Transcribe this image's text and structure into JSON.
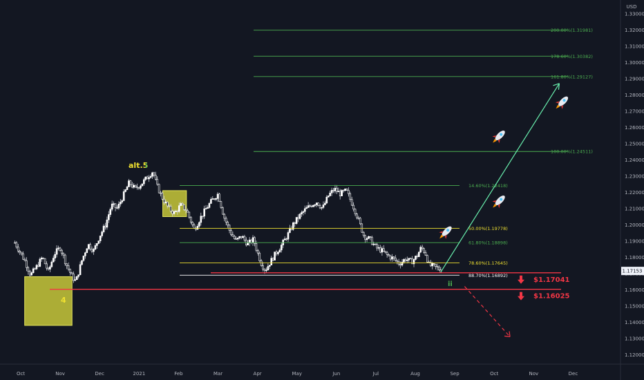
{
  "chart_data": {
    "type": "candlestick",
    "currency": "USD",
    "y_range": [
      1.115,
      1.335
    ],
    "y_ticks": [
      "1.33000",
      "1.32000",
      "1.31000",
      "1.30000",
      "1.29000",
      "1.28000",
      "1.27000",
      "1.26000",
      "1.25000",
      "1.24000",
      "1.23000",
      "1.22000",
      "1.21000",
      "1.20000",
      "1.19000",
      "1.18000",
      "1.17000",
      "1.16000",
      "1.15000",
      "1.14000",
      "1.13000",
      "1.12000"
    ],
    "x_labels": [
      "Oct",
      "Nov",
      "Dec",
      "2021",
      "Feb",
      "Mar",
      "Apr",
      "May",
      "Jun",
      "Jul",
      "Aug",
      "Sep",
      "Oct",
      "Nov",
      "Dec"
    ],
    "x_label_values": [
      0,
      2,
      4,
      6,
      8,
      10,
      12,
      14,
      16,
      18,
      20,
      22,
      24,
      26,
      28
    ],
    "current_price": "1.17153",
    "fib_retracement": [
      {
        "label": "14.60%(1.22418)",
        "price": 1.22418,
        "color": "#4caf50"
      },
      {
        "label": "50.00%(1.19778)",
        "price": 1.19778,
        "color": "#f0e130"
      },
      {
        "label": "61.80%(1.18898)",
        "price": 1.18898,
        "color": "#4caf50"
      },
      {
        "label": "78.60%(1.17645)",
        "price": 1.17645,
        "color": "#f0e130"
      },
      {
        "label": "88.70%(1.16892)",
        "price": 1.16892,
        "color": "#ffffff"
      }
    ],
    "fib_extension": [
      {
        "label": "200.00%(1.31981)",
        "price": 1.31981
      },
      {
        "label": "178.60%(1.30382)",
        "price": 1.30382
      },
      {
        "label": "161.80%(1.29127)",
        "price": 1.29127
      },
      {
        "label": "100.00%(1.24511)",
        "price": 1.24511
      }
    ],
    "support_levels": [
      {
        "label": "$1.17041",
        "price": 1.17041
      },
      {
        "label": "$1.16025",
        "price": 1.16025
      }
    ],
    "wave_labels": [
      {
        "text": "alt.5",
        "color": "#f0e130"
      },
      {
        "text": "i",
        "color": "#4caf50"
      },
      {
        "text": "4",
        "color": "#f0e130"
      },
      {
        "text": "ii",
        "color": "#4caf50"
      }
    ],
    "zones": [
      {
        "from": [
          0.2,
          1.168
        ],
        "to": [
          2.6,
          1.138
        ],
        "color": "#c8c83a"
      },
      {
        "from": [
          7.2,
          1.221
        ],
        "to": [
          8.4,
          1.205
        ],
        "color": "#c8c83a"
      }
    ],
    "projection_up": {
      "from": [
        21.3,
        1.171
      ],
      "to": [
        27.3,
        1.287
      ]
    },
    "projection_down": {
      "from": [
        22.5,
        1.162
      ],
      "to": [
        24.8,
        1.131
      ]
    },
    "rockets": [
      [
        21.6,
        1.196
      ],
      [
        24.3,
        1.215
      ],
      [
        24.3,
        1.255
      ],
      [
        27.5,
        1.276
      ]
    ],
    "price_path": [
      [
        -0.3,
        1.189
      ],
      [
        0.2,
        1.178
      ],
      [
        0.5,
        1.169
      ],
      [
        0.8,
        1.174
      ],
      [
        1.1,
        1.18
      ],
      [
        1.4,
        1.171
      ],
      [
        1.7,
        1.182
      ],
      [
        2.0,
        1.186
      ],
      [
        2.3,
        1.176
      ],
      [
        2.6,
        1.168
      ],
      [
        2.8,
        1.165
      ],
      [
        3.1,
        1.178
      ],
      [
        3.4,
        1.188
      ],
      [
        3.7,
        1.184
      ],
      [
        4.0,
        1.193
      ],
      [
        4.3,
        1.2
      ],
      [
        4.6,
        1.212
      ],
      [
        4.9,
        1.21
      ],
      [
        5.2,
        1.218
      ],
      [
        5.5,
        1.226
      ],
      [
        5.8,
        1.222
      ],
      [
        6.1,
        1.225
      ],
      [
        6.4,
        1.229
      ],
      [
        6.7,
        1.233
      ],
      [
        6.9,
        1.224
      ],
      [
        7.2,
        1.216
      ],
      [
        7.5,
        1.21
      ],
      [
        7.8,
        1.207
      ],
      [
        8.1,
        1.212
      ],
      [
        8.4,
        1.209
      ],
      [
        8.6,
        1.203
      ],
      [
        8.8,
        1.197
      ],
      [
        9.1,
        1.204
      ],
      [
        9.4,
        1.21
      ],
      [
        9.7,
        1.215
      ],
      [
        10.0,
        1.219
      ],
      [
        10.3,
        1.205
      ],
      [
        10.6,
        1.196
      ],
      [
        10.9,
        1.19
      ],
      [
        11.2,
        1.193
      ],
      [
        11.5,
        1.188
      ],
      [
        11.8,
        1.191
      ],
      [
        12.0,
        1.183
      ],
      [
        12.2,
        1.176
      ],
      [
        12.4,
        1.172
      ],
      [
        12.6,
        1.176
      ],
      [
        12.9,
        1.182
      ],
      [
        13.2,
        1.187
      ],
      [
        13.5,
        1.193
      ],
      [
        13.8,
        1.2
      ],
      [
        14.1,
        1.205
      ],
      [
        14.4,
        1.209
      ],
      [
        14.7,
        1.212
      ],
      [
        15.0,
        1.214
      ],
      [
        15.3,
        1.21
      ],
      [
        15.6,
        1.218
      ],
      [
        15.9,
        1.222
      ],
      [
        16.2,
        1.219
      ],
      [
        16.5,
        1.221
      ],
      [
        16.8,
        1.213
      ],
      [
        17.0,
        1.207
      ],
      [
        17.2,
        1.2
      ],
      [
        17.4,
        1.193
      ],
      [
        17.7,
        1.191
      ],
      [
        18.0,
        1.186
      ],
      [
        18.3,
        1.184
      ],
      [
        18.6,
        1.181
      ],
      [
        18.9,
        1.179
      ],
      [
        19.2,
        1.176
      ],
      [
        19.5,
        1.179
      ],
      [
        19.8,
        1.177
      ],
      [
        20.1,
        1.181
      ],
      [
        20.3,
        1.186
      ],
      [
        20.5,
        1.183
      ],
      [
        20.7,
        1.175
      ],
      [
        21.0,
        1.174
      ],
      [
        21.3,
        1.172
      ]
    ]
  }
}
